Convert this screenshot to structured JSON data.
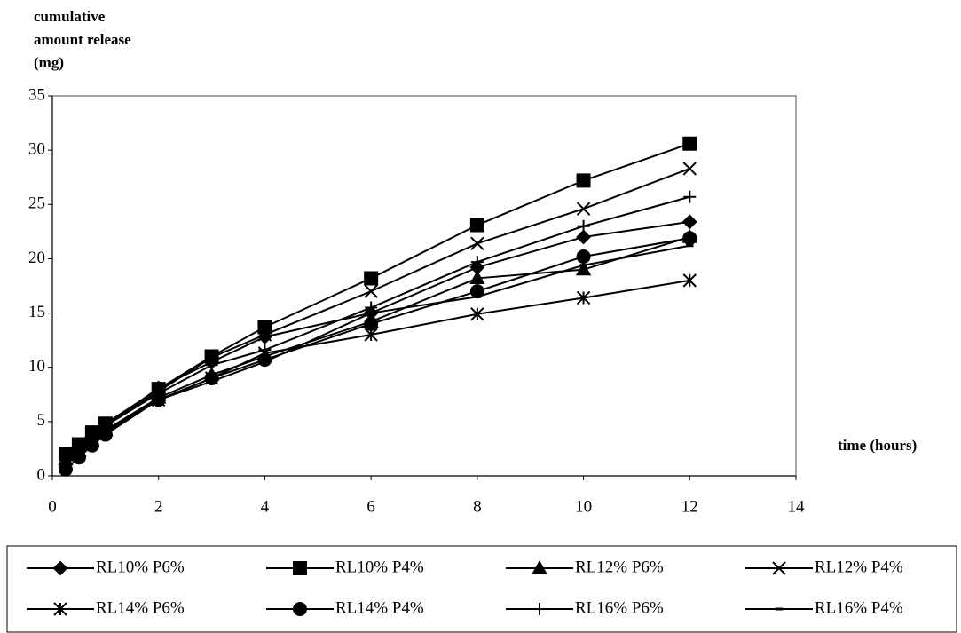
{
  "chart_data": {
    "type": "line",
    "ylabel": [
      "cumulative",
      "amount release",
      "(mg)"
    ],
    "xlabel": "time (hours)",
    "x": [
      0.25,
      0.5,
      0.75,
      1,
      2,
      3,
      4,
      6,
      8,
      10,
      12
    ],
    "xlim": [
      0,
      14
    ],
    "xticks": [
      0,
      2,
      4,
      6,
      8,
      10,
      12,
      14
    ],
    "ylim": [
      0,
      35
    ],
    "yticks": [
      0,
      5,
      10,
      15,
      20,
      25,
      30,
      35
    ],
    "color": "#000000",
    "series": [
      {
        "name": "RL10% P6%",
        "marker": "diamond",
        "values": [
          1.8,
          2.6,
          3.6,
          4.6,
          8.1,
          10.5,
          12.8,
          15.0,
          19.2,
          22.0,
          23.4
        ]
      },
      {
        "name": "RL10% P4%",
        "marker": "square",
        "values": [
          2.0,
          2.9,
          4.0,
          4.8,
          8.0,
          11.0,
          13.7,
          18.2,
          23.1,
          27.2,
          30.6
        ]
      },
      {
        "name": "RL12% P6%",
        "marker": "triangle",
        "values": [
          1.5,
          2.3,
          3.2,
          4.2,
          7.2,
          9.3,
          11.0,
          14.2,
          18.2,
          19.0,
          22.0
        ]
      },
      {
        "name": "RL12% P4%",
        "marker": "x",
        "values": [
          2.0,
          2.8,
          3.8,
          4.7,
          7.8,
          10.9,
          13.0,
          17.0,
          21.4,
          24.6,
          28.3
        ]
      },
      {
        "name": "RL14% P6%",
        "marker": "star",
        "values": [
          1.6,
          2.4,
          3.3,
          4.2,
          7.0,
          9.0,
          11.3,
          13.0,
          14.9,
          16.4,
          18.0
        ]
      },
      {
        "name": "RL14% P4%",
        "marker": "circle",
        "values": [
          0.6,
          1.7,
          2.8,
          3.8,
          7.0,
          9.0,
          10.7,
          14.0,
          17.0,
          20.2,
          21.9
        ]
      },
      {
        "name": "RL16% P6%",
        "marker": "plus",
        "values": [
          1.9,
          2.8,
          3.8,
          4.6,
          7.6,
          10.2,
          11.6,
          15.5,
          19.7,
          23.0,
          25.7
        ]
      },
      {
        "name": "RL16% P4%",
        "marker": "dash",
        "values": [
          1.3,
          2.2,
          3.1,
          4.0,
          7.0,
          8.7,
          10.5,
          15.0,
          16.5,
          19.4,
          21.2
        ]
      }
    ]
  }
}
